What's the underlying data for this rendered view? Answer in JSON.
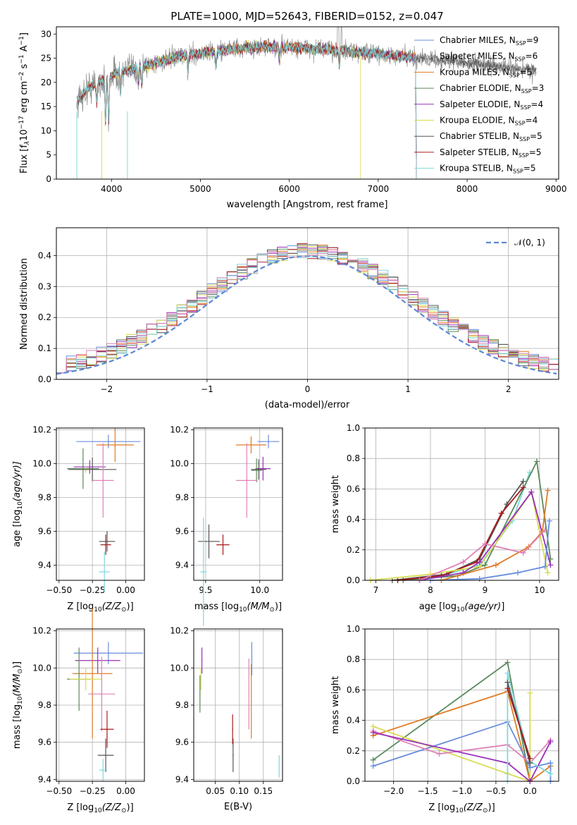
{
  "colors": {
    "Chabrier MILES": "#6a8edc",
    "Salpeter MILES": "#a4a4a4",
    "Kroupa MILES": "#e07b24",
    "Chabrier ELODIE": "#5a8a5a",
    "Salpeter ELODIE": "#9a30b8",
    "Kroupa ELODIE": "#d8dc50",
    "Chabrier STELIB": "#555555",
    "Salpeter STELIB": "#a81a1a",
    "Kroupa STELIB": "#80d8dc",
    "pink": "#e080b8",
    "normal": "#5b87d6"
  },
  "spectrum": {
    "title": "PLATE=1000, MJD=52643, FIBERID=0152, z=0.047",
    "xlabel": "wavelength [Angstrom, rest frame]",
    "ylabel_pre": "Flux [f",
    "ylabel_sub": "λ",
    "ylabel_mid": "10",
    "ylabel_exp": "−17",
    "ylabel_mid2": " erg cm",
    "ylabel_exp2": "−2",
    "ylabel_mid3": " s",
    "ylabel_exp3": "−1",
    "ylabel_post": " A",
    "ylabel_exp4": "−1",
    "ylabel_end": "]",
    "xticks": [
      "4000",
      "5000",
      "6000",
      "7000",
      "8000",
      "9000"
    ],
    "yticks": [
      "0",
      "5",
      "10",
      "15",
      "20",
      "25",
      "30"
    ],
    "legend": [
      {
        "text": "Chabrier MILES, N",
        "sub": "SSP",
        "tail": "=9"
      },
      {
        "text": "Salpeter MILES, N",
        "sub": "SSP",
        "tail": "=6"
      },
      {
        "text": "Kroupa MILES, N",
        "sub": "SSP",
        "tail": "=5"
      },
      {
        "text": "Chabrier ELODIE, N",
        "sub": "SSP",
        "tail": "=3"
      },
      {
        "text": "Salpeter ELODIE, N",
        "sub": "SSP",
        "tail": "=4"
      },
      {
        "text": "Kroupa ELODIE, N",
        "sub": "SSP",
        "tail": "=4"
      },
      {
        "text": "Chabrier STELIB, N",
        "sub": "SSP",
        "tail": "=5"
      },
      {
        "text": "Salpeter STELIB, N",
        "sub": "SSP",
        "tail": "=5"
      },
      {
        "text": "Kroupa STELIB, N",
        "sub": "SSP",
        "tail": "=5"
      }
    ]
  },
  "residuals": {
    "xlabel": "(data-model)/error",
    "ylabel": "Normed distribution",
    "legend": "𝒩(0, 1)",
    "xticks": [
      "−2",
      "−1",
      "0",
      "1",
      "2"
    ],
    "yticks": [
      "0.0",
      "0.1",
      "0.2",
      "0.3",
      "0.4"
    ]
  },
  "scatter": {
    "ylabel_age": "age  [log",
    "ylabel_age_sub": "10",
    "ylabel_age_tail": "(age/yr)]",
    "xlabel_Z": "Z [log",
    "xlabel_Z_sub": "10",
    "xlabel_Z_tail": "(Z/Z",
    "xlabel_Z_end": ")]",
    "xlabel_mass": "mass [log",
    "xlabel_mass_tail": "(M/M",
    "ylabel_mass": "mass [log",
    "xlabel_ebv": "E(B-V)",
    "ylabel_weight": "mass weight",
    "xlabel_age": "age  [log",
    "Z_ticks": [
      "−0.50",
      "−0.25",
      "0.00"
    ],
    "Z_ticks2": [
      "−0.50",
      "−0.25",
      "0.00"
    ],
    "mass_ticks": [
      "9.5",
      "10.0"
    ],
    "ebv_ticks": [
      "0.05",
      "0.10",
      "0.15"
    ],
    "age_y_ticks": [
      "9.4",
      "9.6",
      "9.8",
      "10.0",
      "10.2"
    ],
    "mass_y_ticks": [
      "9.4",
      "9.6",
      "9.8",
      "10.0",
      "10.2"
    ],
    "w_ticks": [
      "0.0",
      "0.2",
      "0.4",
      "0.6",
      "0.8",
      "1.0"
    ],
    "age_x_ticks": [
      "7",
      "8",
      "9",
      "10"
    ],
    "Zw_x_ticks": [
      "−2.0",
      "−1.5",
      "−1.0",
      "−0.5",
      "0.0"
    ]
  },
  "chart_data": [
    {
      "type": "line",
      "title": "PLATE=1000, MJD=52643, FIBERID=0152, z=0.047",
      "xlabel": "wavelength [Angstrom, rest frame]",
      "ylabel": "Flux [fλ10^-17 erg cm^-2 s^-1 A^-1]",
      "xlim": [
        3380,
        9030
      ],
      "ylim": [
        0,
        31.5
      ],
      "data_range": [
        3610,
        8780
      ],
      "model_range": [
        3610,
        7420
      ],
      "anchors": [
        [
          3610,
          16
        ],
        [
          3750,
          19
        ],
        [
          3900,
          20.5
        ],
        [
          4000,
          21.5
        ],
        [
          4200,
          22.5
        ],
        [
          4500,
          24
        ],
        [
          4800,
          25.5
        ],
        [
          5200,
          26.5
        ],
        [
          5600,
          27.3
        ],
        [
          6000,
          27.3
        ],
        [
          6400,
          26.8
        ],
        [
          6800,
          26.2
        ],
        [
          7200,
          25.5
        ],
        [
          7400,
          25.2
        ],
        [
          7800,
          24.5
        ],
        [
          8200,
          23.5
        ],
        [
          8780,
          22.5
        ]
      ],
      "series": [
        "Chabrier MILES",
        "Salpeter MILES",
        "Kroupa MILES",
        "Chabrier ELODIE",
        "Salpeter ELODIE",
        "Kroupa ELODIE",
        "Chabrier STELIB",
        "Salpeter STELIB",
        "Kroupa STELIB"
      ]
    },
    {
      "type": "bar",
      "xlabel": "(data-model)/error",
      "ylabel": "Normed distribution",
      "xlim": [
        -2.5,
        2.5
      ],
      "ylim": [
        0,
        0.49
      ],
      "bin_width": 0.1,
      "legend": "N(0,1)",
      "series_colors": [
        "#6a8edc",
        "#a4a4a4",
        "#e07b24",
        "#5a8a5a",
        "#9a30b8",
        "#d8dc50",
        "#555555",
        "#a81a1a",
        "#80d8dc",
        "#e080b8"
      ]
    },
    {
      "type": "scatter",
      "xlabel": "Z [log10(Z/Zsun)]",
      "ylabel": "age [log10(age/yr)]",
      "xlim": [
        -0.52,
        0.14
      ],
      "ylim": [
        9.31,
        10.21
      ],
      "points": [
        {
          "series": "Chabrier MILES",
          "x": -0.13,
          "y": 10.13,
          "xerr": 0.24,
          "yerr": 0.04
        },
        {
          "series": "Kroupa MILES",
          "x": -0.08,
          "y": 10.11,
          "xerr": 0.14,
          "yerr": 0.1
        },
        {
          "series": "Chabrier ELODIE",
          "x": -0.32,
          "y": 9.97,
          "xerr": 0.12,
          "yerr": 0.12
        },
        {
          "series": "Salpeter ELODIE",
          "x": -0.27,
          "y": 9.98,
          "xerr": 0.12,
          "yerr": 0.04
        },
        {
          "series": "Kroupa ELODIE",
          "x": -0.3,
          "y": 9.965,
          "xerr": 0.06,
          "yerr": 0.02
        },
        {
          "series": "Chabrier STELIB",
          "x": -0.25,
          "y": 9.965,
          "xerr": 0.18,
          "yerr": 0.07
        },
        {
          "series": "pink",
          "x": -0.17,
          "y": 9.9,
          "xerr": 0.08,
          "yerr": 0.22
        },
        {
          "series": "Salpeter STELIB",
          "x": -0.15,
          "y": 9.52,
          "xerr": 0.04,
          "yerr": 0.06
        },
        {
          "series": "Chabrier STELIB",
          "x": -0.14,
          "y": 9.54,
          "xerr": 0.06,
          "yerr": 0.06
        },
        {
          "series": "Kroupa STELIB",
          "x": -0.16,
          "y": 9.36,
          "xerr": 0.04,
          "yerr": 0.12
        }
      ]
    },
    {
      "type": "scatter",
      "xlabel": "mass [log10(M/Msun)]",
      "ylabel": "age [log10(age/yr)]",
      "xlim": [
        9.39,
        10.21
      ],
      "ylim": [
        9.31,
        10.21
      ],
      "points": [
        {
          "series": "Chabrier MILES",
          "x": 10.08,
          "y": 10.13,
          "xerr": 0.1,
          "yerr": 0.04
        },
        {
          "series": "Kroupa MILES",
          "x": 9.92,
          "y": 10.11,
          "xerr": 0.14,
          "yerr": 0.05
        },
        {
          "series": "Salpeter ELODIE",
          "x": 10.03,
          "y": 9.97,
          "xerr": 0.07,
          "yerr": 0.07
        },
        {
          "series": "Chabrier ELODIE",
          "x": 9.97,
          "y": 9.96,
          "xerr": 0.05,
          "yerr": 0.07
        },
        {
          "series": "Chabrier STELIB",
          "x": 9.99,
          "y": 9.965,
          "xerr": 0.07,
          "yerr": 0.06
        },
        {
          "series": "pink",
          "x": 9.88,
          "y": 9.9,
          "xerr": 0.1,
          "yerr": 0.22
        },
        {
          "series": "Chabrier STELIB",
          "x": 9.53,
          "y": 9.54,
          "xerr": 0.1,
          "yerr": 0.1
        },
        {
          "series": "Salpeter STELIB",
          "x": 9.66,
          "y": 9.52,
          "xerr": 0.06,
          "yerr": 0.06
        },
        {
          "series": "Kroupa STELIB",
          "x": 9.48,
          "y": 9.36,
          "xerr": 0.03,
          "yerr": 0.32
        }
      ]
    },
    {
      "type": "line",
      "xlabel": "age [log10(age/yr)]",
      "ylabel": "mass weight",
      "xlim": [
        6.8,
        10.35
      ],
      "ylim": [
        0,
        1.0
      ],
      "series": [
        {
          "name": "Kroupa STELIB",
          "x": [
            7.4,
            8.3,
            8.9,
            9.5,
            9.82
          ],
          "y": [
            0,
            0.04,
            0.1,
            0.39,
            0.71
          ]
        },
        {
          "name": "Chabrier ELODIE",
          "x": [
            7.5,
            8.5,
            9.0,
            9.95,
            10.2
          ],
          "y": [
            0,
            0.03,
            0.1,
            0.78,
            0.14
          ]
        },
        {
          "name": "Chabrier STELIB",
          "x": [
            7.3,
            8.3,
            8.9,
            9.4,
            9.7
          ],
          "y": [
            0,
            0.04,
            0.14,
            0.5,
            0.65
          ]
        },
        {
          "name": "Salpeter STELIB",
          "x": [
            7.4,
            8.2,
            8.85,
            9.3,
            9.7
          ],
          "y": [
            0,
            0.03,
            0.12,
            0.44,
            0.61
          ]
        },
        {
          "name": "Kroupa ELODIE",
          "x": [
            6.9,
            8.0,
            8.9,
            9.85,
            10.15
          ],
          "y": [
            0,
            0.04,
            0.09,
            0.58,
            0.05
          ]
        },
        {
          "name": "Salpeter ELODIE",
          "x": [
            7.8,
            8.6,
            8.9,
            9.85,
            10.2
          ],
          "y": [
            0,
            0.05,
            0.12,
            0.58,
            0.1
          ]
        },
        {
          "name": "Chabrier MILES",
          "x": [
            8.0,
            8.9,
            9.6,
            10.1,
            10.18
          ],
          "y": [
            0,
            0.01,
            0.05,
            0.09,
            0.39
          ]
        },
        {
          "name": "Kroupa MILES",
          "x": [
            8.2,
            9.2,
            9.8,
            10.05,
            10.15
          ],
          "y": [
            0,
            0.1,
            0.22,
            0.32,
            0.59
          ]
        },
        {
          "name": "pink",
          "x": [
            7.8,
            8.6,
            9.0,
            9.7,
            10.1
          ],
          "y": [
            0,
            0.12,
            0.24,
            0.18,
            0.33
          ]
        }
      ]
    },
    {
      "type": "scatter",
      "xlabel": "Z [log10(Z/Zsun)]",
      "ylabel": "mass [log10(M/Msun)]",
      "xlim": [
        -0.52,
        0.14
      ],
      "ylim": [
        9.39,
        10.21
      ],
      "points": [
        {
          "series": "Chabrier MILES",
          "x": -0.13,
          "y": 10.08,
          "xerr": 0.26,
          "yerr": 0.06
        },
        {
          "series": "Salpeter ELODIE",
          "x": -0.21,
          "y": 10.04,
          "xerr": 0.17,
          "yerr": 0.07
        },
        {
          "series": "Kroupa MILES",
          "x": -0.25,
          "y": 9.97,
          "xerr": 0.15,
          "yerr": 0.35
        },
        {
          "series": "Chabrier ELODIE",
          "x": -0.35,
          "y": 9.94,
          "xerr": 0.09,
          "yerr": 0.17
        },
        {
          "series": "Kroupa ELODIE",
          "x": -0.3,
          "y": 9.94,
          "xerr": 0.12,
          "yerr": 0.06
        },
        {
          "series": "pink",
          "x": -0.18,
          "y": 9.86,
          "xerr": 0.1,
          "yerr": 0.2
        },
        {
          "series": "Salpeter STELIB",
          "x": -0.14,
          "y": 9.67,
          "xerr": 0.05,
          "yerr": 0.1
        },
        {
          "series": "Chabrier STELIB",
          "x": -0.15,
          "y": 9.53,
          "xerr": 0.06,
          "yerr": 0.09
        },
        {
          "series": "Kroupa STELIB",
          "x": -0.17,
          "y": 9.45,
          "xerr": 0.03,
          "yerr": 0.06
        }
      ]
    },
    {
      "type": "scatter",
      "xlabel": "E(B-V)",
      "ylabel": "mass [log10(M/Msun)]",
      "xlim": [
        0.005,
        0.19
      ],
      "ylim": [
        9.39,
        10.21
      ],
      "points": [
        {
          "series": "Salpeter ELODIE",
          "x": 0.022,
          "y": 10.04,
          "xerr": 0,
          "yerr": 0.07
        },
        {
          "series": "Chabrier ELODIE",
          "x": 0.018,
          "y": 9.86,
          "xerr": 0,
          "yerr": 0.1
        },
        {
          "series": "Kroupa ELODIE",
          "x": 0.02,
          "y": 9.94,
          "xerr": 0,
          "yerr": 0.06
        },
        {
          "series": "Chabrier MILES",
          "x": 0.126,
          "y": 10.05,
          "xerr": 0,
          "yerr": 0.09
        },
        {
          "series": "Kroupa MILES",
          "x": 0.125,
          "y": 9.82,
          "xerr": 0,
          "yerr": 0.2
        },
        {
          "series": "pink",
          "x": 0.12,
          "y": 9.86,
          "xerr": 0,
          "yerr": 0.19
        },
        {
          "series": "Chabrier STELIB",
          "x": 0.087,
          "y": 9.53,
          "xerr": 0,
          "yerr": 0.09
        },
        {
          "series": "Salpeter STELIB",
          "x": 0.086,
          "y": 9.67,
          "xerr": 0,
          "yerr": 0.08
        },
        {
          "series": "Kroupa STELIB",
          "x": 0.183,
          "y": 9.47,
          "xerr": 0,
          "yerr": 0.06
        }
      ]
    },
    {
      "type": "line",
      "xlabel": "Z [log10(Z/Zsun)]",
      "ylabel": "mass weight",
      "xlim": [
        -2.42,
        0.42
      ],
      "ylim": [
        0,
        1.0
      ],
      "series": [
        {
          "name": "Chabrier ELODIE",
          "x": [
            -2.3,
            -0.33,
            0.0
          ],
          "y": [
            0.14,
            0.78,
            0.0
          ]
        },
        {
          "name": "Kroupa MILES",
          "x": [
            -2.3,
            -0.33,
            0.0,
            0.3
          ],
          "y": [
            0.3,
            0.59,
            0.0,
            0.1
          ]
        },
        {
          "name": "Kroupa ELODIE",
          "x": [
            -2.3,
            -0.33,
            0.0,
            0.0
          ],
          "y": [
            0.36,
            0.05,
            0.0,
            0.58
          ]
        },
        {
          "name": "Chabrier MILES",
          "x": [
            -2.3,
            -0.33,
            0.0,
            0.3,
            0.3
          ],
          "y": [
            0.1,
            0.39,
            0.09,
            0.12,
            0.0
          ]
        },
        {
          "name": "pink",
          "x": [
            -2.3,
            -1.33,
            -0.33,
            0.0,
            0.3
          ],
          "y": [
            0.33,
            0.18,
            0.24,
            0.12,
            0.27
          ]
        },
        {
          "name": "Salpeter ELODIE",
          "x": [
            -2.3,
            -0.33,
            0.0,
            0.3
          ],
          "y": [
            0.32,
            0.12,
            0.0,
            0.26
          ]
        },
        {
          "name": "Kroupa STELIB",
          "x": [
            -0.33,
            -0.33,
            0.0,
            0.3
          ],
          "y": [
            0.0,
            0.71,
            0.13,
            0.05
          ]
        },
        {
          "name": "Chabrier STELIB",
          "x": [
            -0.33,
            0.0
          ],
          "y": [
            0.65,
            0.12
          ]
        },
        {
          "name": "Salpeter STELIB",
          "x": [
            -0.33,
            0.0
          ],
          "y": [
            0.61,
            0.15
          ]
        }
      ]
    }
  ]
}
